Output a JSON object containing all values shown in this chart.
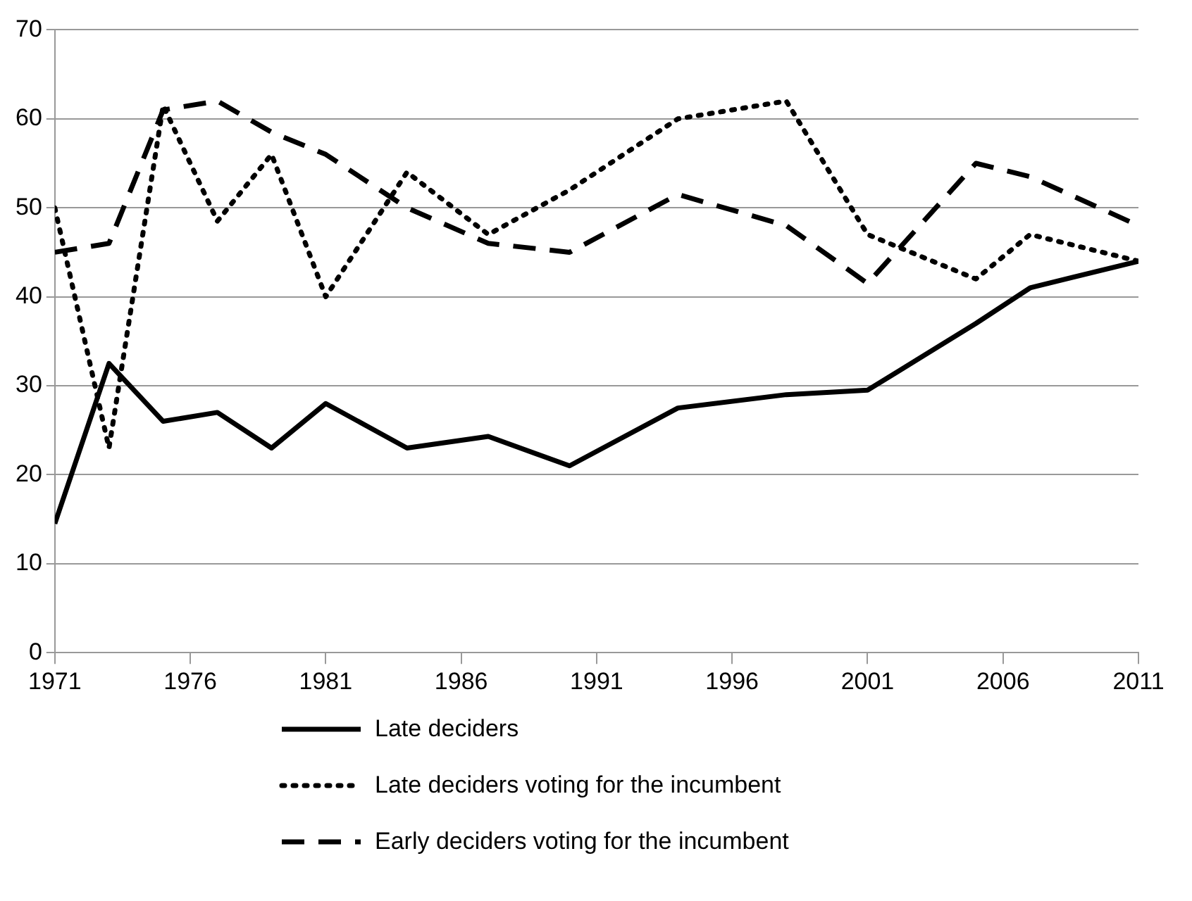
{
  "chart_data": {
    "type": "line",
    "x": [
      1971,
      1973,
      1975,
      1977,
      1979,
      1981,
      1984,
      1987,
      1990,
      1994,
      1998,
      2001,
      2005,
      2007,
      2011
    ],
    "series": [
      {
        "name": "Late deciders",
        "color": "#000000",
        "line_style": "solid",
        "values": [
          14.5,
          32.5,
          26,
          27,
          23,
          28,
          23,
          24.3,
          21,
          27.5,
          29,
          29.5,
          37,
          41,
          44
        ]
      },
      {
        "name": "Late deciders voting for the incumbent",
        "color": "#000000",
        "line_style": "dotted",
        "values": [
          50,
          23,
          61.5,
          48.5,
          56,
          40,
          54,
          47,
          52,
          60,
          62,
          47,
          42,
          47,
          44
        ]
      },
      {
        "name": "Early deciders voting for the incumbent",
        "color": "#000000",
        "line_style": "dashed",
        "values": [
          45,
          46,
          61,
          62,
          58.5,
          56,
          50,
          46,
          45,
          51.5,
          48,
          41.5,
          55,
          53.5,
          48
        ]
      }
    ],
    "xlim": [
      1971,
      2011
    ],
    "xticks": [
      1971,
      1976,
      1981,
      1986,
      1991,
      1996,
      2001,
      2006,
      2011
    ],
    "ylim": [
      0,
      70
    ],
    "yticks": [
      0,
      10,
      20,
      30,
      40,
      50,
      60,
      70
    ],
    "grid": "y",
    "legend": "bottom",
    "marker": "none"
  }
}
